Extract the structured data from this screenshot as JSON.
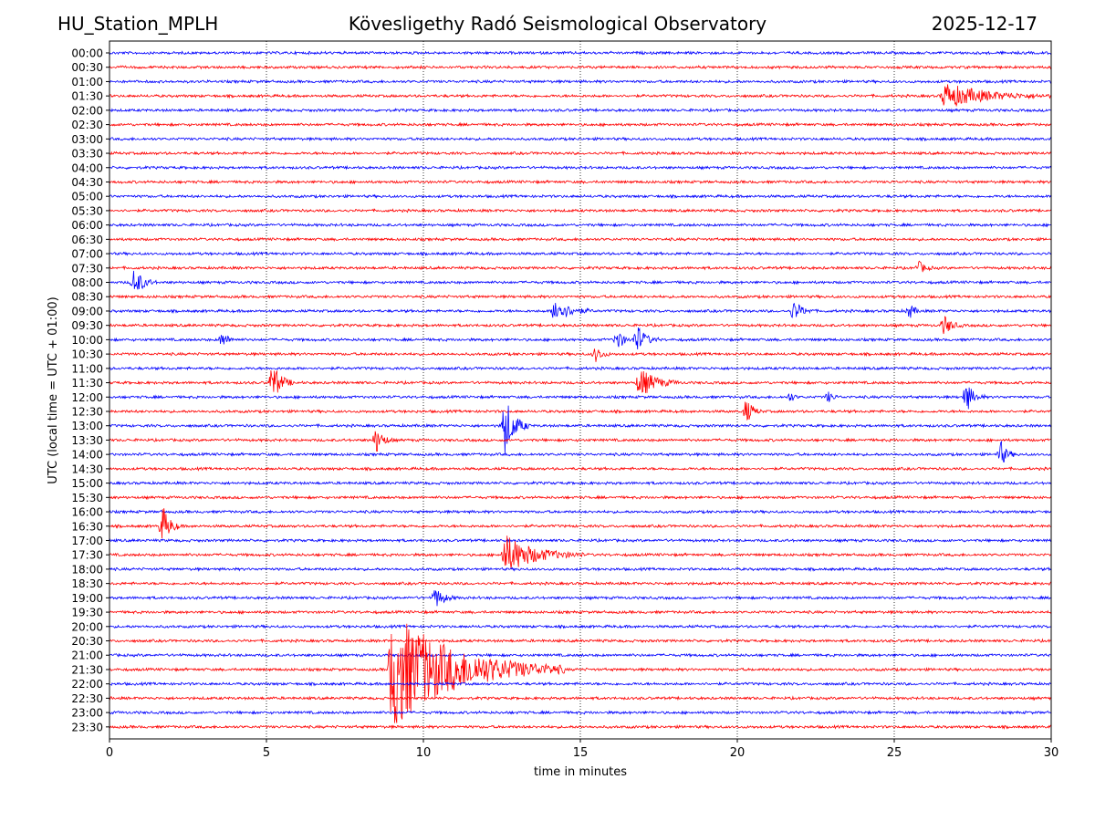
{
  "header": {
    "station": "HU_Station_MPLH",
    "observatory": "Kövesligethy Radó Seismological Observatory",
    "date": "2025-12-17"
  },
  "chart_data": {
    "type": "line",
    "title": "Kövesligethy Radó Seismological Observatory",
    "xlabel": "time in minutes",
    "ylabel": "UTC (local time = UTC + 01:00)",
    "xlim": [
      0,
      30
    ],
    "x_ticks": [
      0,
      5,
      10,
      15,
      20,
      25,
      30
    ],
    "grid": "vertical dotted at x ticks",
    "trace_colors": [
      "#0000ff",
      "#ff0000"
    ],
    "rows": [
      "00:00",
      "00:30",
      "01:00",
      "01:30",
      "02:00",
      "02:30",
      "03:00",
      "03:30",
      "04:00",
      "04:30",
      "05:00",
      "05:30",
      "06:00",
      "06:30",
      "07:00",
      "07:30",
      "08:00",
      "08:30",
      "09:00",
      "09:30",
      "10:00",
      "10:30",
      "11:00",
      "11:30",
      "12:00",
      "12:30",
      "13:00",
      "13:30",
      "14:00",
      "14:30",
      "15:00",
      "15:30",
      "16:00",
      "16:30",
      "17:00",
      "17:30",
      "18:00",
      "18:30",
      "19:00",
      "19:30",
      "20:00",
      "20:30",
      "21:00",
      "21:30",
      "22:00",
      "22:30",
      "23:00",
      "23:30"
    ],
    "events": [
      {
        "row": "01:30",
        "minute": 26.6,
        "amplitude": 2.5,
        "duration_min": 3.5
      },
      {
        "row": "07:30",
        "minute": 25.8,
        "amplitude": 1.2,
        "duration_min": 0.5
      },
      {
        "row": "08:00",
        "minute": 0.8,
        "amplitude": 3.0,
        "duration_min": 0.7
      },
      {
        "row": "09:00",
        "minute": 14.2,
        "amplitude": 2.5,
        "duration_min": 1.2
      },
      {
        "row": "09:00",
        "minute": 21.8,
        "amplitude": 2.0,
        "duration_min": 0.7
      },
      {
        "row": "09:00",
        "minute": 25.5,
        "amplitude": 1.5,
        "duration_min": 0.4
      },
      {
        "row": "09:30",
        "minute": 26.6,
        "amplitude": 2.0,
        "duration_min": 0.6
      },
      {
        "row": "10:00",
        "minute": 3.6,
        "amplitude": 1.5,
        "duration_min": 0.5
      },
      {
        "row": "10:00",
        "minute": 16.2,
        "amplitude": 2.5,
        "duration_min": 0.4
      },
      {
        "row": "10:00",
        "minute": 16.8,
        "amplitude": 3.0,
        "duration_min": 0.7
      },
      {
        "row": "10:30",
        "minute": 15.5,
        "amplitude": 1.5,
        "duration_min": 0.5
      },
      {
        "row": "11:30",
        "minute": 5.2,
        "amplitude": 4.0,
        "duration_min": 0.7
      },
      {
        "row": "11:30",
        "minute": 16.9,
        "amplitude": 3.0,
        "duration_min": 1.3
      },
      {
        "row": "12:00",
        "minute": 21.7,
        "amplitude": 1.0,
        "duration_min": 0.3
      },
      {
        "row": "12:00",
        "minute": 22.9,
        "amplitude": 1.0,
        "duration_min": 0.4
      },
      {
        "row": "12:00",
        "minute": 27.3,
        "amplitude": 3.0,
        "duration_min": 0.6
      },
      {
        "row": "12:30",
        "minute": 20.3,
        "amplitude": 2.5,
        "duration_min": 0.5
      },
      {
        "row": "13:00",
        "minute": 12.6,
        "amplitude": 6.0,
        "duration_min": 0.8
      },
      {
        "row": "13:30",
        "minute": 8.5,
        "amplitude": 2.5,
        "duration_min": 0.6
      },
      {
        "row": "14:00",
        "minute": 28.4,
        "amplitude": 2.5,
        "duration_min": 0.5
      },
      {
        "row": "16:30",
        "minute": 1.7,
        "amplitude": 4.0,
        "duration_min": 0.6
      },
      {
        "row": "17:30",
        "minute": 12.6,
        "amplitude": 4.0,
        "duration_min": 2.5
      },
      {
        "row": "19:00",
        "minute": 10.4,
        "amplitude": 2.0,
        "duration_min": 0.7
      },
      {
        "row": "21:30",
        "minute": 9.0,
        "amplitude": 12.0,
        "duration_min": 5.5
      }
    ]
  }
}
